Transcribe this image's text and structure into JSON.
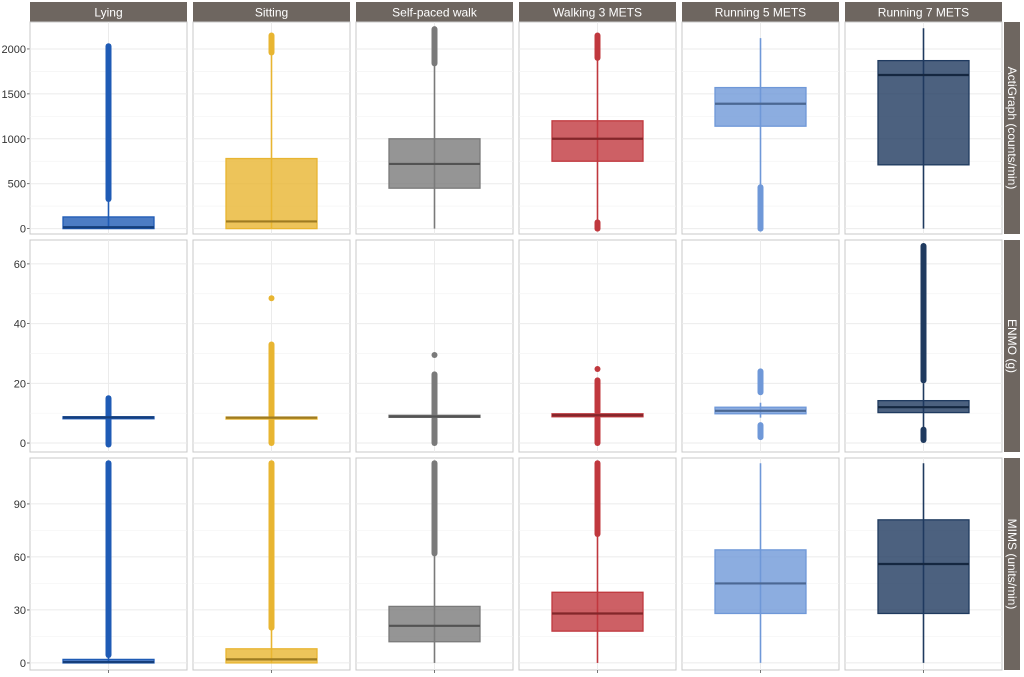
{
  "chart_data": {
    "type": "boxplot",
    "columns": [
      "Lying",
      "Sitting",
      "Self-paced walk",
      "Walking 3 METS",
      "Running 5 METS",
      "Running 7 METS"
    ],
    "colors": [
      "#1f5bb5",
      "#e8b531",
      "#7a7a7a",
      "#c0383e",
      "#6f98d8",
      "#1f3a5f"
    ],
    "rows": [
      {
        "label": "ActiGraph (counts/min)",
        "ylim": [
          -60,
          2300
        ],
        "ticks": [
          0,
          500,
          1000,
          1500,
          2000
        ],
        "boxes": [
          {
            "q1": 0,
            "median": 15,
            "q3": 130,
            "wlo": 0,
            "whi": 320,
            "outlo": null,
            "outhi": [
              330,
              2030
            ]
          },
          {
            "q1": 0,
            "median": 80,
            "q3": 780,
            "wlo": 0,
            "whi": 1950,
            "outlo": null,
            "outhi": [
              1960,
              2150
            ]
          },
          {
            "q1": 450,
            "median": 720,
            "q3": 1000,
            "wlo": 0,
            "whi": 1830,
            "outlo": null,
            "outhi": [
              1840,
              2220
            ]
          },
          {
            "q1": 750,
            "median": 1000,
            "q3": 1200,
            "wlo": 80,
            "whi": 1890,
            "outlo": [
              0,
              70
            ],
            "outhi": [
              1900,
              2150
            ]
          },
          {
            "q1": 1140,
            "median": 1390,
            "q3": 1570,
            "wlo": 480,
            "whi": 2120,
            "outlo": [
              0,
              460
            ],
            "outhi": null
          },
          {
            "q1": 710,
            "median": 1710,
            "q3": 1870,
            "wlo": 0,
            "whi": 2230,
            "outlo": null,
            "outhi": null
          }
        ]
      },
      {
        "label": "ENMO (g)",
        "ylim": [
          -3,
          68
        ],
        "ticks": [
          0,
          20,
          40,
          60
        ],
        "boxes": [
          {
            "q1": 8.4,
            "median": 8.6,
            "q3": 8.8,
            "wlo": 8.1,
            "whi": 9.1,
            "outlo": [
              -0.5,
              8.0
            ],
            "outhi": [
              9.2,
              15
            ]
          },
          {
            "q1": 8.3,
            "median": 8.5,
            "q3": 8.7,
            "wlo": 8.0,
            "whi": 9.0,
            "outlo": [
              0,
              7.9
            ],
            "outhi": [
              9.1,
              33
            ],
            "extra": [
              48.5
            ]
          },
          {
            "q1": 8.6,
            "median": 8.9,
            "q3": 9.3,
            "wlo": 8.2,
            "whi": 9.6,
            "outlo": [
              0,
              8.1
            ],
            "outhi": [
              9.7,
              23
            ],
            "extra": [
              29.5
            ]
          },
          {
            "q1": 8.8,
            "median": 9.3,
            "q3": 9.8,
            "wlo": 8.3,
            "whi": 10.3,
            "outlo": [
              0,
              8.2
            ],
            "outhi": [
              10.4,
              21
            ],
            "extra": [
              24.8
            ]
          },
          {
            "q1": 9.8,
            "median": 10.8,
            "q3": 12.0,
            "wlo": 8.5,
            "whi": 13.5,
            "outlo": [
              2,
              6
            ],
            "outhi": [
              17,
              24
            ]
          },
          {
            "q1": 10.2,
            "median": 12.0,
            "q3": 14.2,
            "wlo": 5,
            "whi": 20,
            "outlo": [
              1,
              4.5
            ],
            "outhi": [
              21,
              66
            ]
          }
        ]
      },
      {
        "label": "MIMS (units/min)",
        "ylim": [
          -4,
          116
        ],
        "ticks": [
          0,
          30,
          60,
          90
        ],
        "boxes": [
          {
            "q1": 0,
            "median": 0.5,
            "q3": 2,
            "wlo": 0,
            "whi": 4,
            "outlo": null,
            "outhi": [
              4.5,
              113
            ]
          },
          {
            "q1": 0,
            "median": 2,
            "q3": 8,
            "wlo": 0,
            "whi": 19,
            "outlo": null,
            "outhi": [
              20,
              113
            ]
          },
          {
            "q1": 12,
            "median": 21,
            "q3": 32,
            "wlo": 0,
            "whi": 61,
            "outlo": null,
            "outhi": [
              62,
              113
            ]
          },
          {
            "q1": 18,
            "median": 28,
            "q3": 40,
            "wlo": 0,
            "whi": 72,
            "outlo": null,
            "outhi": [
              73,
              113
            ]
          },
          {
            "q1": 28,
            "median": 45,
            "q3": 64,
            "wlo": 0,
            "whi": 113,
            "outlo": null,
            "outhi": null
          },
          {
            "q1": 28,
            "median": 56,
            "q3": 81,
            "wlo": 0,
            "whi": 113,
            "outlo": null,
            "outhi": null
          }
        ]
      }
    ]
  }
}
